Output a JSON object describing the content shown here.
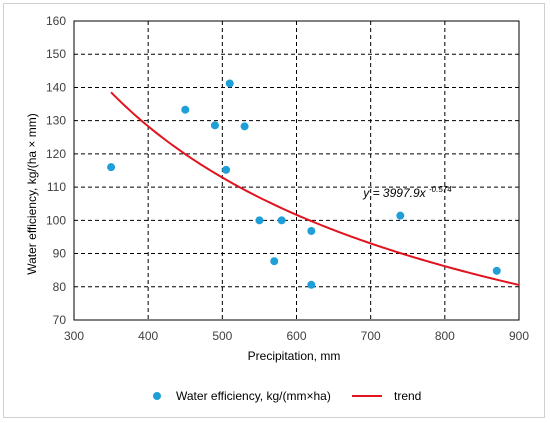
{
  "chart_data": {
    "type": "scatter",
    "xlabel": "Precipitation, mm",
    "ylabel": "Water efficiency, kg/(ha × mm)",
    "xlim": [
      300,
      900
    ],
    "ylim": [
      70,
      160
    ],
    "x_ticks": [
      "300",
      "400",
      "500",
      "600",
      "700",
      "800",
      "900"
    ],
    "y_ticks": [
      "70",
      "80",
      "90",
      "100",
      "110",
      "120",
      "130",
      "140",
      "150",
      "160"
    ],
    "grid": true,
    "legend_position": "bottom",
    "series": [
      {
        "name": "Water efficiency, kg/(mm×ha)",
        "kind": "points",
        "color": "#1f9fd8",
        "x": [
          350,
          450,
          490,
          505,
          510,
          530,
          550,
          570,
          580,
          620,
          620,
          740,
          870
        ],
        "y": [
          116,
          133.3,
          128.6,
          115.2,
          141.2,
          128.3,
          100,
          87.7,
          100,
          96.8,
          80.6,
          101.4,
          84.8
        ]
      },
      {
        "name": "trend",
        "kind": "power_trendline",
        "color": "#e0141e",
        "coefficient": 3997.9,
        "exponent": -0.574,
        "x_range": [
          350,
          900
        ]
      }
    ],
    "annotation": {
      "base": "y = 3997.9x",
      "superscript": "-0.574",
      "at": [
        690,
        107
      ]
    }
  }
}
